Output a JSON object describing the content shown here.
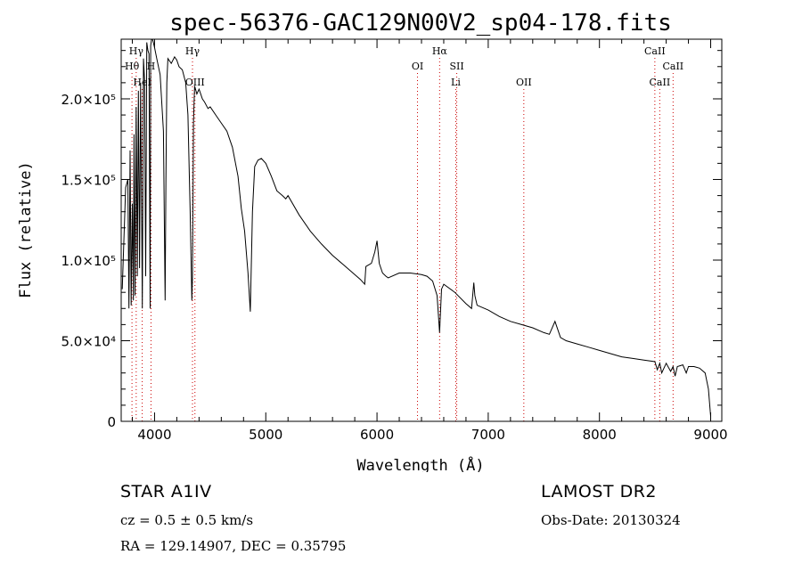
{
  "chart_data": {
    "type": "line",
    "title": "spec-56376-GAC129N00V2_sp04-178.fits",
    "xlabel": "Wavelength (Å)",
    "ylabel": "Flux (relative)",
    "xlim": [
      3700,
      9100
    ],
    "ylim": [
      0,
      237000
    ],
    "x_ticks": [
      4000,
      5000,
      6000,
      7000,
      8000,
      9000
    ],
    "y_ticks": [
      {
        "value": 0,
        "label": "0"
      },
      {
        "value": 50000,
        "label": "5.0×10⁴"
      },
      {
        "value": 100000,
        "label": "1.0×10⁵"
      },
      {
        "value": 150000,
        "label": "1.5×10⁵"
      },
      {
        "value": 200000,
        "label": "2.0×10⁵"
      }
    ],
    "series": [
      {
        "color": "#000000",
        "x": [
          3710,
          3740,
          3760,
          3770,
          3780,
          3790,
          3800,
          3810,
          3815,
          3825,
          3835,
          3845,
          3855,
          3865,
          3875,
          3885,
          3890,
          3900,
          3910,
          3920,
          3930,
          3940,
          3950,
          3960,
          3965,
          3975,
          3985,
          4000,
          4020,
          4050,
          4080,
          4095,
          4102,
          4110,
          4120,
          4150,
          4180,
          4200,
          4220,
          4250,
          4280,
          4300,
          4320,
          4335,
          4341,
          4350,
          4360,
          4380,
          4400,
          4430,
          4450,
          4480,
          4500,
          4550,
          4600,
          4650,
          4700,
          4750,
          4780,
          4810,
          4840,
          4861,
          4880,
          4900,
          4930,
          4960,
          5000,
          5050,
          5100,
          5150,
          5180,
          5200,
          5300,
          5400,
          5500,
          5600,
          5700,
          5800,
          5850,
          5890,
          5900,
          5950,
          5980,
          6000,
          6020,
          6050,
          6080,
          6100,
          6200,
          6300,
          6400,
          6450,
          6500,
          6540,
          6563,
          6580,
          6600,
          6700,
          6800,
          6850,
          6870,
          6880,
          6900,
          7000,
          7100,
          7200,
          7300,
          7400,
          7500,
          7550,
          7600,
          7650,
          7700,
          7800,
          7900,
          8000,
          8100,
          8200,
          8300,
          8400,
          8498,
          8520,
          8542,
          8560,
          8600,
          8640,
          8662,
          8680,
          8700,
          8750,
          8780,
          8800,
          8850,
          8900,
          8950,
          8980,
          9000
        ],
        "y": [
          82000,
          145000,
          150000,
          70000,
          168000,
          72000,
          135000,
          75000,
          178000,
          78000,
          195000,
          90000,
          205000,
          95000,
          210000,
          120000,
          70000,
          225000,
          212000,
          90000,
          235000,
          230000,
          228000,
          70000,
          233000,
          238000,
          236000,
          232000,
          225000,
          215000,
          180000,
          75000,
          150000,
          210000,
          225000,
          222000,
          226000,
          224000,
          220000,
          218000,
          210000,
          190000,
          130000,
          75000,
          90000,
          185000,
          208000,
          203000,
          206000,
          200000,
          198000,
          194000,
          195000,
          190000,
          185000,
          180000,
          170000,
          152000,
          132000,
          118000,
          92000,
          68000,
          130000,
          158000,
          162000,
          163000,
          160000,
          152000,
          143000,
          140000,
          138000,
          140000,
          128000,
          118000,
          110000,
          103000,
          97000,
          91000,
          88000,
          85000,
          96000,
          98000,
          105000,
          112000,
          98000,
          92000,
          90000,
          89000,
          92000,
          92000,
          91000,
          90000,
          87000,
          78000,
          55000,
          82000,
          85000,
          80000,
          73000,
          70000,
          86000,
          78000,
          72000,
          69000,
          65000,
          62000,
          60000,
          58000,
          55000,
          54000,
          62000,
          52000,
          50000,
          48000,
          46000,
          44000,
          42000,
          40000,
          39000,
          38000,
          37000,
          32000,
          36000,
          30000,
          36000,
          31000,
          34000,
          28000,
          34000,
          35000,
          30000,
          34000,
          34000,
          33000,
          30000,
          20000,
          3000
        ]
      }
    ],
    "spectral_lines": [
      {
        "label": "Hγ",
        "x": 3835,
        "row": 0,
        "color": "#cc0000"
      },
      {
        "label": "Hθ",
        "x": 3797,
        "row": 1,
        "color": "#cc0000"
      },
      {
        "label": "H",
        "x": 3968,
        "row": 1,
        "color": "#cc0000"
      },
      {
        "label": "HeI",
        "x": 3889,
        "row": 2,
        "color": "#cc0000"
      },
      {
        "label": "Hγ",
        "x": 4341,
        "row": 0,
        "color": "#cc0000"
      },
      {
        "label": "OIII",
        "x": 4363,
        "row": 2,
        "color": "#cc0000"
      },
      {
        "label": "OI",
        "x": 6364,
        "row": 1,
        "color": "#cc0000"
      },
      {
        "label": "Hα",
        "x": 6563,
        "row": 0,
        "color": "#cc0000"
      },
      {
        "label": "SII",
        "x": 6717,
        "row": 1,
        "color": "#cc0000"
      },
      {
        "label": "Li",
        "x": 6708,
        "row": 2,
        "color": "#cc0000"
      },
      {
        "label": "OII",
        "x": 7320,
        "row": 2,
        "color": "#cc0000"
      },
      {
        "label": "CaII",
        "x": 8498,
        "row": 0,
        "color": "#cc0000"
      },
      {
        "label": "CaII",
        "x": 8662,
        "row": 1,
        "color": "#cc0000"
      },
      {
        "label": "CaII",
        "x": 8542,
        "row": 2,
        "color": "#cc0000"
      }
    ]
  },
  "info": {
    "object": "STAR   A1IV",
    "survey": "LAMOST  DR2",
    "redshift": "cz = 0.5 ± 0.5 km/s",
    "obs_date": "Obs-Date: 20130324",
    "coords": "RA = 129.14907, DEC =   0.35795"
  }
}
